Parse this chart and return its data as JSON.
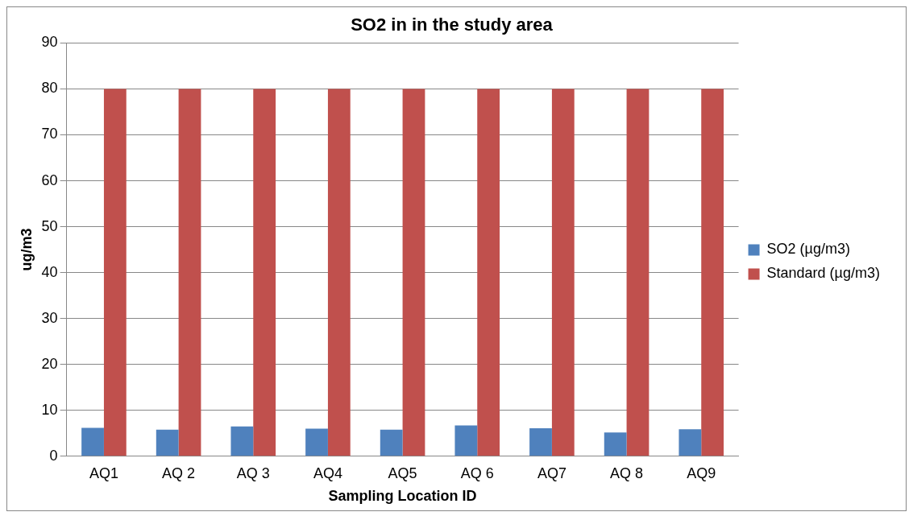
{
  "chart_data": {
    "type": "bar",
    "title": "SO2 in in the study area",
    "xlabel": "Sampling Location ID",
    "ylabel": "ug/m3",
    "categories": [
      "AQ1",
      "AQ 2",
      "AQ 3",
      "AQ4",
      "AQ5",
      "AQ 6",
      "AQ7",
      "AQ 8",
      "AQ9"
    ],
    "series": [
      {
        "name": "SO2 (µg/m3)",
        "color": "#4f81bd",
        "values": [
          6.2,
          5.8,
          6.5,
          6.0,
          5.8,
          6.7,
          6.1,
          5.2,
          5.9
        ]
      },
      {
        "name": "Standard (µg/m3)",
        "color": "#c0504d",
        "values": [
          80,
          80,
          80,
          80,
          80,
          80,
          80,
          80,
          80
        ]
      }
    ],
    "ylim": [
      0,
      90
    ],
    "yticks": [
      0,
      10,
      20,
      30,
      40,
      50,
      60,
      70,
      80,
      90
    ],
    "grid": "y",
    "legend": "right"
  }
}
